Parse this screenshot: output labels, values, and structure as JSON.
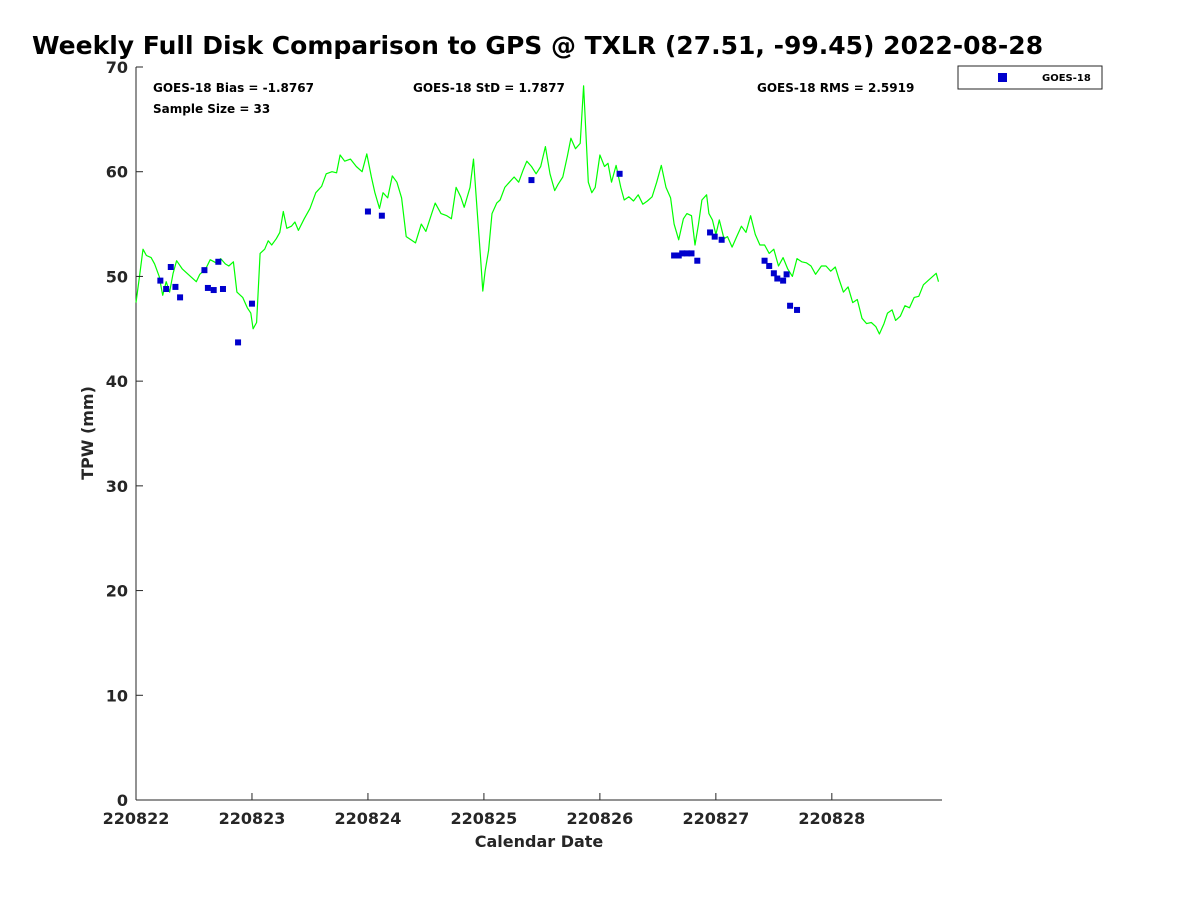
{
  "chart_data": {
    "type": "scatter",
    "title": "Weekly Full Disk Comparison to GPS @ TXLR (27.51, -99.45) 2022-08-28",
    "xlabel": "Calendar Date",
    "ylabel": "TPW (mm)",
    "xlim": [
      0,
      6.95
    ],
    "ylim": [
      0,
      70
    ],
    "x_tick_labels": [
      "220822",
      "220823",
      "220824",
      "220825",
      "220826",
      "220827",
      "220828"
    ],
    "y_ticks": [
      0,
      10,
      20,
      30,
      40,
      50,
      60,
      70
    ],
    "grid": false,
    "legend_position": "outside top-right",
    "legend": [
      "GOES-18"
    ],
    "stats": {
      "bias": "GOES-18 Bias = -1.8767",
      "std": "GOES-18 StD = 1.7877",
      "rms": "GOES-18 RMS = 2.5919",
      "sample": "Sample Size = 33"
    },
    "colors": {
      "gps": "#00ff00",
      "goes": "#0000cc"
    },
    "series": [
      {
        "name": "GOES-18",
        "marker": "square",
        "points": [
          [
            0.21,
            49.6
          ],
          [
            0.26,
            48.8
          ],
          [
            0.3,
            50.9
          ],
          [
            0.34,
            49.0
          ],
          [
            0.38,
            48.0
          ],
          [
            0.59,
            50.6
          ],
          [
            0.62,
            48.9
          ],
          [
            0.67,
            48.7
          ],
          [
            0.71,
            51.4
          ],
          [
            0.75,
            48.8
          ],
          [
            0.88,
            43.7
          ],
          [
            1.0,
            47.4
          ],
          [
            2.0,
            56.2
          ],
          [
            2.12,
            55.8
          ],
          [
            3.41,
            59.2
          ],
          [
            4.17,
            59.8
          ],
          [
            4.64,
            52.0
          ],
          [
            4.68,
            52.0
          ],
          [
            4.71,
            52.2
          ],
          [
            4.75,
            52.2
          ],
          [
            4.79,
            52.2
          ],
          [
            4.84,
            51.5
          ],
          [
            4.95,
            54.2
          ],
          [
            4.99,
            53.8
          ],
          [
            5.05,
            53.5
          ],
          [
            5.42,
            51.5
          ],
          [
            5.46,
            51.0
          ],
          [
            5.5,
            50.3
          ],
          [
            5.53,
            49.8
          ],
          [
            5.58,
            49.6
          ],
          [
            5.61,
            50.2
          ],
          [
            5.64,
            47.2
          ],
          [
            5.7,
            46.8
          ]
        ]
      },
      {
        "name": "",
        "marker": "line",
        "points": [
          [
            0.0,
            47.5
          ],
          [
            0.03,
            50.0
          ],
          [
            0.06,
            52.6
          ],
          [
            0.09,
            52.0
          ],
          [
            0.13,
            51.8
          ],
          [
            0.16,
            51.2
          ],
          [
            0.2,
            50.0
          ],
          [
            0.23,
            48.2
          ],
          [
            0.26,
            49.5
          ],
          [
            0.29,
            48.5
          ],
          [
            0.32,
            50.3
          ],
          [
            0.35,
            51.5
          ],
          [
            0.4,
            50.7
          ],
          [
            0.47,
            50.0
          ],
          [
            0.52,
            49.5
          ],
          [
            0.55,
            50.2
          ],
          [
            0.6,
            50.7
          ],
          [
            0.64,
            51.6
          ],
          [
            0.69,
            51.3
          ],
          [
            0.73,
            51.7
          ],
          [
            0.77,
            51.2
          ],
          [
            0.8,
            51.0
          ],
          [
            0.84,
            51.4
          ],
          [
            0.87,
            48.5
          ],
          [
            0.92,
            48.0
          ],
          [
            0.96,
            47.0
          ],
          [
            0.99,
            46.5
          ],
          [
            1.01,
            45.0
          ],
          [
            1.04,
            45.6
          ],
          [
            1.07,
            52.2
          ],
          [
            1.11,
            52.6
          ],
          [
            1.14,
            53.4
          ],
          [
            1.17,
            53.0
          ],
          [
            1.21,
            53.6
          ],
          [
            1.24,
            54.2
          ],
          [
            1.27,
            56.2
          ],
          [
            1.3,
            54.6
          ],
          [
            1.34,
            54.8
          ],
          [
            1.37,
            55.2
          ],
          [
            1.4,
            54.4
          ],
          [
            1.45,
            55.5
          ],
          [
            1.5,
            56.5
          ],
          [
            1.55,
            58.0
          ],
          [
            1.6,
            58.6
          ],
          [
            1.64,
            59.8
          ],
          [
            1.69,
            60.0
          ],
          [
            1.73,
            59.9
          ],
          [
            1.76,
            61.6
          ],
          [
            1.8,
            61.0
          ],
          [
            1.85,
            61.2
          ],
          [
            1.9,
            60.5
          ],
          [
            1.95,
            60.0
          ],
          [
            1.99,
            61.7
          ],
          [
            2.03,
            59.5
          ],
          [
            2.06,
            58.0
          ],
          [
            2.1,
            56.5
          ],
          [
            2.13,
            58.0
          ],
          [
            2.17,
            57.5
          ],
          [
            2.21,
            59.6
          ],
          [
            2.25,
            59.0
          ],
          [
            2.29,
            57.5
          ],
          [
            2.33,
            53.8
          ],
          [
            2.37,
            53.5
          ],
          [
            2.41,
            53.2
          ],
          [
            2.46,
            55.0
          ],
          [
            2.5,
            54.3
          ],
          [
            2.55,
            56.0
          ],
          [
            2.58,
            57.0
          ],
          [
            2.63,
            56.0
          ],
          [
            2.68,
            55.8
          ],
          [
            2.72,
            55.5
          ],
          [
            2.76,
            58.5
          ],
          [
            2.8,
            57.6
          ],
          [
            2.83,
            56.6
          ],
          [
            2.88,
            58.5
          ],
          [
            2.91,
            61.2
          ],
          [
            2.94,
            56.5
          ],
          [
            2.97,
            52.0
          ],
          [
            2.99,
            48.6
          ],
          [
            3.01,
            50.5
          ],
          [
            3.04,
            52.5
          ],
          [
            3.07,
            56.0
          ],
          [
            3.11,
            57.0
          ],
          [
            3.14,
            57.3
          ],
          [
            3.18,
            58.5
          ],
          [
            3.22,
            59.0
          ],
          [
            3.26,
            59.5
          ],
          [
            3.3,
            59.0
          ],
          [
            3.34,
            60.2
          ],
          [
            3.37,
            61.0
          ],
          [
            3.41,
            60.5
          ],
          [
            3.45,
            59.8
          ],
          [
            3.49,
            60.5
          ],
          [
            3.53,
            62.4
          ],
          [
            3.57,
            59.8
          ],
          [
            3.61,
            58.2
          ],
          [
            3.64,
            58.8
          ],
          [
            3.68,
            59.5
          ],
          [
            3.72,
            61.5
          ],
          [
            3.75,
            63.2
          ],
          [
            3.79,
            62.2
          ],
          [
            3.83,
            62.7
          ],
          [
            3.86,
            68.2
          ],
          [
            3.9,
            59.0
          ],
          [
            3.93,
            58.0
          ],
          [
            3.96,
            58.5
          ],
          [
            4.0,
            61.6
          ],
          [
            4.04,
            60.5
          ],
          [
            4.07,
            60.8
          ],
          [
            4.1,
            59.0
          ],
          [
            4.14,
            60.6
          ],
          [
            4.18,
            58.5
          ],
          [
            4.21,
            57.3
          ],
          [
            4.25,
            57.6
          ],
          [
            4.29,
            57.2
          ],
          [
            4.33,
            57.8
          ],
          [
            4.37,
            56.9
          ],
          [
            4.41,
            57.2
          ],
          [
            4.45,
            57.6
          ],
          [
            4.49,
            59.0
          ],
          [
            4.53,
            60.6
          ],
          [
            4.57,
            58.5
          ],
          [
            4.61,
            57.5
          ],
          [
            4.64,
            55.0
          ],
          [
            4.68,
            53.5
          ],
          [
            4.72,
            55.5
          ],
          [
            4.75,
            56.0
          ],
          [
            4.79,
            55.8
          ],
          [
            4.82,
            53.0
          ],
          [
            4.85,
            55.0
          ],
          [
            4.88,
            57.3
          ],
          [
            4.92,
            57.8
          ],
          [
            4.94,
            56.0
          ],
          [
            4.97,
            55.4
          ],
          [
            5.0,
            54.0
          ],
          [
            5.03,
            55.4
          ],
          [
            5.07,
            53.6
          ],
          [
            5.1,
            53.8
          ],
          [
            5.14,
            52.8
          ],
          [
            5.18,
            53.8
          ],
          [
            5.22,
            54.8
          ],
          [
            5.26,
            54.2
          ],
          [
            5.3,
            55.8
          ],
          [
            5.34,
            54.0
          ],
          [
            5.38,
            53.0
          ],
          [
            5.42,
            53.0
          ],
          [
            5.46,
            52.2
          ],
          [
            5.5,
            52.6
          ],
          [
            5.54,
            51.0
          ],
          [
            5.58,
            51.8
          ],
          [
            5.62,
            50.7
          ],
          [
            5.66,
            50.0
          ],
          [
            5.7,
            51.7
          ],
          [
            5.74,
            51.4
          ],
          [
            5.78,
            51.3
          ],
          [
            5.82,
            51.0
          ],
          [
            5.86,
            50.2
          ],
          [
            5.91,
            51.0
          ],
          [
            5.95,
            51.0
          ],
          [
            5.99,
            50.5
          ],
          [
            6.03,
            50.9
          ],
          [
            6.06,
            49.8
          ],
          [
            6.1,
            48.5
          ],
          [
            6.14,
            49.0
          ],
          [
            6.18,
            47.5
          ],
          [
            6.22,
            47.8
          ],
          [
            6.26,
            46.0
          ],
          [
            6.3,
            45.5
          ],
          [
            6.34,
            45.6
          ],
          [
            6.38,
            45.2
          ],
          [
            6.41,
            44.5
          ],
          [
            6.45,
            45.5
          ],
          [
            6.48,
            46.5
          ],
          [
            6.52,
            46.8
          ],
          [
            6.55,
            45.8
          ],
          [
            6.59,
            46.2
          ],
          [
            6.63,
            47.2
          ],
          [
            6.67,
            47.0
          ],
          [
            6.71,
            48.0
          ],
          [
            6.75,
            48.1
          ],
          [
            6.79,
            49.2
          ],
          [
            6.83,
            49.6
          ],
          [
            6.87,
            50.0
          ],
          [
            6.9,
            50.3
          ],
          [
            6.92,
            49.5
          ]
        ]
      }
    ]
  }
}
